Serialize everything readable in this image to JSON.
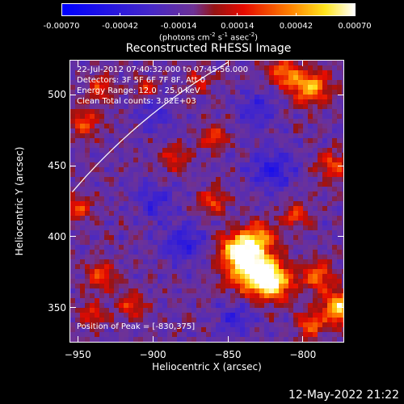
{
  "chart_data": {
    "type": "heatmap",
    "title": "Reconstructed RHESSI Image",
    "xlabel": "Heliocentric X (arcsec)",
    "ylabel": "Heliocentric Y (arcsec)",
    "xlim": [
      -955,
      -773
    ],
    "ylim": [
      326,
      524
    ],
    "x_ticks": [
      -950,
      -900,
      -850,
      -800
    ],
    "y_ticks": [
      350,
      400,
      450,
      500
    ],
    "colorbar": {
      "range": [
        -0.0007,
        0.0007
      ],
      "tick_values": [
        -0.0007,
        -0.00042,
        -0.00014,
        0.00014,
        0.00042,
        0.0007
      ],
      "tick_labels": [
        "-0.00070",
        "-0.00042",
        "-0.00014",
        "0.00014",
        "0.00042",
        "0.00070"
      ],
      "unit_text": "(photons cm",
      "unit_exp1": "-2",
      "unit_mid1": " s",
      "unit_exp2": "-1",
      "unit_mid2": " asec",
      "unit_exp3": "-2",
      "unit_close": ")"
    },
    "annotations": {
      "time_range": "22-Jul-2012 07:40:32.000 to 07:45:56.000",
      "detectors": "Detectors: 3F 5F 6F 7F 8F, Att 0",
      "energy": "Energy Range: 12.0 - 25.0 keV",
      "clean": "Clean     Total counts: 3.82E+03",
      "peak": "Position of Peak = [-830,375]"
    },
    "peak_position": [
      -830,
      375
    ],
    "sources": [
      {
        "x": -835,
        "y": 378,
        "amp": 1.0,
        "r": 11
      },
      {
        "x": -820,
        "y": 368,
        "amp": 0.85,
        "r": 9
      },
      {
        "x": -843,
        "y": 392,
        "amp": 0.75,
        "r": 8
      },
      {
        "x": -828,
        "y": 400,
        "amp": 0.6,
        "r": 7
      },
      {
        "x": -775,
        "y": 350,
        "amp": 0.85,
        "r": 8
      },
      {
        "x": -790,
        "y": 372,
        "amp": 0.55,
        "r": 7
      },
      {
        "x": -795,
        "y": 338,
        "amp": 0.55,
        "r": 6
      },
      {
        "x": -935,
        "y": 372,
        "amp": 0.45,
        "r": 7
      },
      {
        "x": -915,
        "y": 352,
        "amp": 0.4,
        "r": 6
      },
      {
        "x": -940,
        "y": 345,
        "amp": 0.4,
        "r": 6
      },
      {
        "x": -860,
        "y": 425,
        "amp": 0.45,
        "r": 6
      },
      {
        "x": -805,
        "y": 415,
        "amp": 0.45,
        "r": 6
      },
      {
        "x": -860,
        "y": 470,
        "amp": 0.4,
        "r": 6
      },
      {
        "x": -885,
        "y": 455,
        "amp": 0.35,
        "r": 6
      },
      {
        "x": -795,
        "y": 505,
        "amp": 0.75,
        "r": 8
      },
      {
        "x": -812,
        "y": 515,
        "amp": 0.6,
        "r": 7
      },
      {
        "x": -945,
        "y": 480,
        "amp": 0.45,
        "r": 7
      },
      {
        "x": -935,
        "y": 505,
        "amp": 0.4,
        "r": 6
      },
      {
        "x": -905,
        "y": 505,
        "amp": 0.35,
        "r": 5
      },
      {
        "x": -870,
        "y": 510,
        "amp": 0.35,
        "r": 5
      },
      {
        "x": -950,
        "y": 420,
        "amp": 0.4,
        "r": 6
      },
      {
        "x": -780,
        "y": 450,
        "amp": 0.45,
        "r": 7
      },
      {
        "x": -820,
        "y": 448,
        "amp": -0.4,
        "r": 10
      },
      {
        "x": -880,
        "y": 395,
        "amp": -0.35,
        "r": 10
      },
      {
        "x": -900,
        "y": 425,
        "amp": -0.3,
        "r": 9
      },
      {
        "x": -845,
        "y": 342,
        "amp": -0.3,
        "r": 8
      },
      {
        "x": -830,
        "y": 490,
        "amp": -0.3,
        "r": 9
      },
      {
        "x": -900,
        "y": 485,
        "amp": -0.25,
        "r": 8
      }
    ],
    "limb": {
      "center_x": -640,
      "center_y": 180,
      "radius": 402
    }
  },
  "footer": {
    "date_stamp": "12-May-2022 21:22"
  },
  "colors": {
    "background": "#000000",
    "axes": "#ffffff",
    "limb": "#ffffff"
  }
}
